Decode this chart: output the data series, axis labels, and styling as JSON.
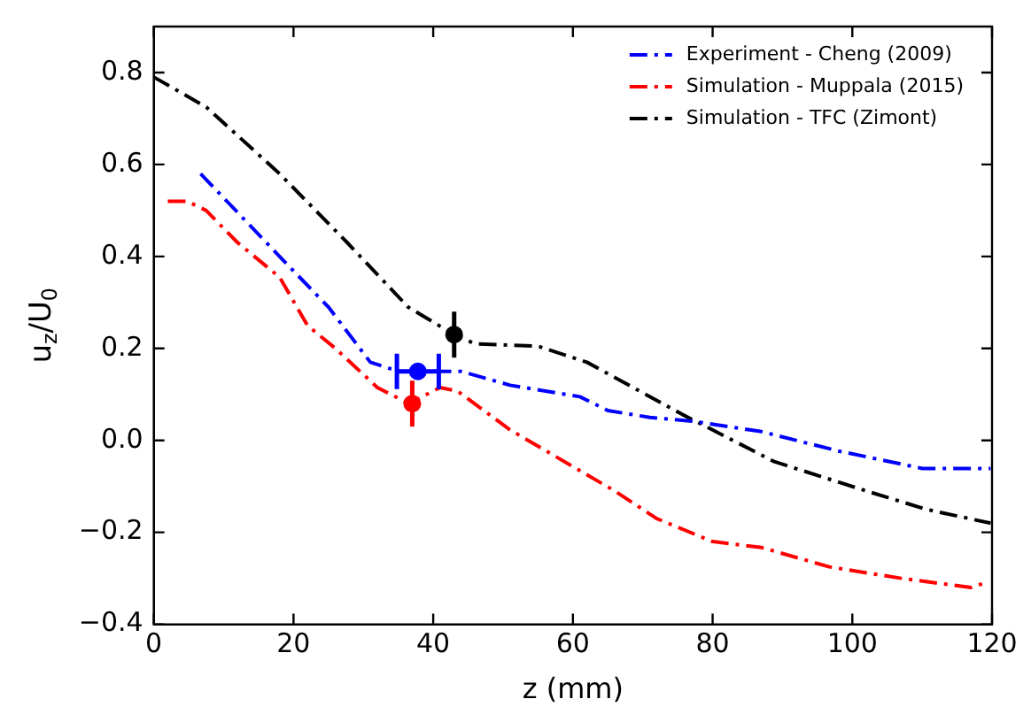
{
  "chart_data": {
    "type": "line",
    "xlabel": "z (mm)",
    "ylabel": "u$_{z}$/U$_{0}$",
    "xlim": [
      0,
      120
    ],
    "xticks": [
      0,
      20,
      40,
      60,
      80,
      100,
      120
    ],
    "ylim": [
      -0.4,
      0.9
    ],
    "yticks": [
      {
        "value": -0.4,
        "label": "−0.4"
      },
      {
        "value": -0.2,
        "label": "−0.2"
      },
      {
        "value": 0,
        "label": "0.0"
      },
      0.2,
      0.4,
      0.6,
      0.8
    ],
    "grid": false,
    "legend": "top right",
    "line_style": "dashed",
    "marker": "none",
    "series": [
      {
        "name": "Experiment - Cheng (2009)",
        "color": "#0000ff",
        "x": [
          6.7,
          18,
          25,
          31,
          35,
          37.8,
          44,
          51,
          61,
          65,
          71,
          77,
          87,
          98,
          110,
          119.8
        ],
        "values": [
          0.58,
          0.4,
          0.29,
          0.17,
          0.15,
          0.15,
          0.15,
          0.12,
          0.095,
          0.065,
          0.05,
          0.042,
          0.019,
          -0.023,
          -0.061,
          -0.061
        ]
      },
      {
        "name": "Simulation - Muppala (2015)",
        "color": "#ff0000",
        "x": [
          2,
          4.8,
          7.5,
          12,
          18,
          22,
          26,
          32,
          36.5,
          41,
          43.5,
          51,
          60,
          66,
          72,
          80,
          87,
          96.7,
          107,
          117,
          119
        ],
        "values": [
          0.52,
          0.52,
          0.5,
          0.43,
          0.355,
          0.25,
          0.2,
          0.115,
          0.08,
          0.115,
          0.107,
          0.023,
          -0.057,
          -0.11,
          -0.17,
          -0.22,
          -0.233,
          -0.275,
          -0.3,
          -0.32,
          -0.31
        ]
      },
      {
        "name": "Simulation - TFC (Zimont)",
        "color": "#000000",
        "x": [
          0,
          7.5,
          18,
          27.7,
          36.4,
          43,
          46,
          55,
          62,
          75.6,
          88.8,
          102,
          110.6,
          119.8
        ],
        "values": [
          0.79,
          0.725,
          0.58,
          0.43,
          0.29,
          0.23,
          0.21,
          0.205,
          0.17,
          0.057,
          -0.046,
          -0.11,
          -0.15,
          -0.18
        ]
      },
      {
        "type": "scatter",
        "marker": "circle",
        "color": "#0000ff",
        "x": [
          37.8
        ],
        "values": [
          0.15
        ],
        "xerrors": [
          3
        ]
      },
      {
        "type": "scatter",
        "marker": "circle",
        "color": "#ff0000",
        "x": [
          37
        ],
        "values": [
          0.08
        ],
        "errors": [
          0.05
        ]
      },
      {
        "type": "scatter",
        "marker": "circle",
        "color": "#000000",
        "x": [
          43
        ],
        "values": [
          0.23
        ],
        "errors": [
          0.05
        ]
      }
    ]
  }
}
